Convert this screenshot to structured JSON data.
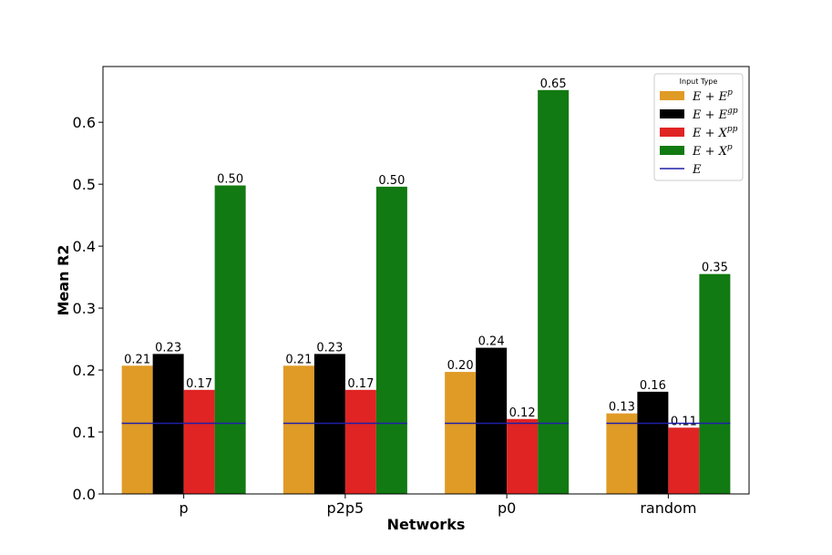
{
  "chart_data": {
    "type": "bar",
    "xlabel": "Networks",
    "ylabel": "Mean R2",
    "categories": [
      "p",
      "p2p5",
      "p0",
      "random"
    ],
    "ylim": [
      0,
      0.69
    ],
    "yticks": [
      "0.0",
      "0.1",
      "0.2",
      "0.3",
      "0.4",
      "0.5",
      "0.6"
    ],
    "series": [
      {
        "name": "E + E^p",
        "color": "#e09b26",
        "values": [
          0.207,
          0.207,
          0.197,
          0.13
        ],
        "labels": [
          "0.21",
          "0.21",
          "0.20",
          "0.13"
        ]
      },
      {
        "name": "E + E^gp",
        "color": "#000000",
        "values": [
          0.226,
          0.226,
          0.236,
          0.165
        ],
        "labels": [
          "0.23",
          "0.23",
          "0.24",
          "0.16"
        ]
      },
      {
        "name": "E + X^pp",
        "color": "#e02424",
        "values": [
          0.168,
          0.168,
          0.121,
          0.107
        ],
        "labels": [
          "0.17",
          "0.17",
          "0.12",
          "0.11"
        ]
      },
      {
        "name": "E + X^p",
        "color": "#127a12",
        "values": [
          0.498,
          0.496,
          0.652,
          0.355
        ],
        "labels": [
          "0.50",
          "0.50",
          "0.65",
          "0.35"
        ]
      }
    ],
    "baseline": {
      "name": "E",
      "value": 0.114,
      "color": "#1f1fa8"
    },
    "legend": {
      "title": "Input Type",
      "placement": "top-right",
      "entries": [
        {
          "base": "E + E",
          "sup": "p"
        },
        {
          "base": "E + E",
          "sup": "gp"
        },
        {
          "base": "E + X",
          "sup": "pp"
        },
        {
          "base": "E + X",
          "sup": "p"
        },
        {
          "base": "E",
          "sup": ""
        }
      ]
    },
    "grid": false
  }
}
